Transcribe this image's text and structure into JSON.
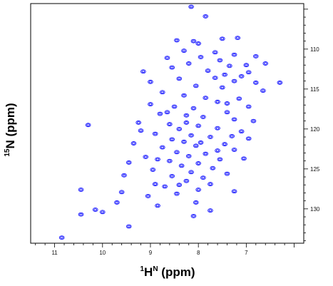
{
  "chart_data": {
    "type": "scatter",
    "title": "",
    "xlabel_main": "H",
    "xlabel_sup1": "1",
    "xlabel_sup2": "N",
    "xlabel_unit": " (ppm)",
    "ylabel_main": "N (ppm)",
    "ylabel_sup": "15",
    "x_axis": {
      "reversed": true,
      "xlim": [
        11.5,
        5.8
      ],
      "ticks": [
        11,
        10,
        9,
        8,
        7
      ]
    },
    "y_axis": {
      "reversed": true,
      "side": "right",
      "ylim": [
        104.3,
        134.3
      ],
      "ticks": [
        110,
        115,
        120,
        125,
        130
      ]
    },
    "grid": false,
    "legend": "none",
    "peak_color": "#1a1aff",
    "peaks": [
      [
        8.15,
        104.7
      ],
      [
        7.85,
        105.9
      ],
      [
        7.5,
        108.7
      ],
      [
        7.18,
        108.6
      ],
      [
        8.45,
        108.9
      ],
      [
        8.1,
        109.0
      ],
      [
        8.0,
        109.3
      ],
      [
        8.3,
        110.2
      ],
      [
        7.65,
        110.4
      ],
      [
        7.25,
        110.7
      ],
      [
        6.8,
        110.9
      ],
      [
        7.95,
        111.0
      ],
      [
        8.65,
        111.1
      ],
      [
        7.55,
        111.4
      ],
      [
        8.2,
        111.8
      ],
      [
        7.35,
        112.1
      ],
      [
        7.0,
        112.0
      ],
      [
        6.6,
        111.8
      ],
      [
        8.55,
        112.3
      ],
      [
        7.8,
        112.7
      ],
      [
        9.15,
        112.8
      ],
      [
        6.95,
        112.9
      ],
      [
        7.45,
        113.2
      ],
      [
        7.1,
        113.4
      ],
      [
        8.4,
        113.7
      ],
      [
        7.65,
        113.6
      ],
      [
        7.25,
        114.0
      ],
      [
        9.0,
        114.1
      ],
      [
        6.8,
        114.2
      ],
      [
        8.05,
        114.6
      ],
      [
        7.5,
        114.8
      ],
      [
        6.65,
        115.2
      ],
      [
        8.75,
        115.4
      ],
      [
        8.3,
        115.8
      ],
      [
        7.85,
        116.1
      ],
      [
        7.15,
        116.2
      ],
      [
        7.6,
        116.6
      ],
      [
        9.0,
        116.9
      ],
      [
        8.5,
        117.2
      ],
      [
        8.1,
        117.4
      ],
      [
        6.95,
        117.2
      ],
      [
        7.4,
        117.9
      ],
      [
        8.8,
        118.1
      ],
      [
        8.25,
        118.3
      ],
      [
        7.9,
        118.5
      ],
      [
        7.25,
        118.8
      ],
      [
        6.85,
        119.0
      ],
      [
        9.25,
        119.2
      ],
      [
        8.6,
        119.4
      ],
      [
        8.0,
        119.6
      ],
      [
        7.6,
        119.9
      ],
      [
        10.3,
        119.5
      ],
      [
        8.4,
        120.0
      ],
      [
        7.1,
        120.3
      ],
      [
        8.9,
        120.6
      ],
      [
        8.15,
        120.8
      ],
      [
        7.75,
        121.0
      ],
      [
        6.95,
        121.2
      ],
      [
        8.55,
        121.3
      ],
      [
        8.3,
        121.6
      ],
      [
        7.45,
        121.9
      ],
      [
        9.35,
        121.8
      ],
      [
        8.05,
        122.1
      ],
      [
        8.75,
        122.3
      ],
      [
        7.25,
        122.6
      ],
      [
        8.45,
        122.9
      ],
      [
        7.85,
        123.1
      ],
      [
        8.2,
        123.4
      ],
      [
        9.1,
        123.5
      ],
      [
        7.55,
        123.8
      ],
      [
        8.6,
        124.0
      ],
      [
        8.0,
        124.3
      ],
      [
        9.45,
        124.2
      ],
      [
        8.35,
        124.6
      ],
      [
        7.7,
        124.9
      ],
      [
        8.95,
        125.1
      ],
      [
        8.15,
        125.4
      ],
      [
        7.4,
        125.6
      ],
      [
        8.55,
        125.9
      ],
      [
        7.9,
        126.1
      ],
      [
        8.25,
        126.5
      ],
      [
        7.75,
        126.9
      ],
      [
        8.7,
        127.2
      ],
      [
        8.0,
        127.6
      ],
      [
        10.45,
        127.6
      ],
      [
        9.6,
        127.9
      ],
      [
        7.25,
        127.8
      ],
      [
        8.45,
        128.1
      ],
      [
        9.05,
        128.4
      ],
      [
        9.7,
        129.2
      ],
      [
        8.85,
        129.6
      ],
      [
        10.0,
        130.4
      ],
      [
        10.15,
        130.1
      ],
      [
        10.45,
        130.7
      ],
      [
        7.75,
        130.2
      ],
      [
        8.1,
        130.9
      ],
      [
        9.45,
        132.2
      ],
      [
        10.85,
        133.6
      ],
      [
        6.3,
        114.2
      ],
      [
        7.4,
        116.8
      ],
      [
        8.9,
        126.9
      ],
      [
        7.05,
        123.7
      ],
      [
        8.65,
        117.9
      ],
      [
        7.95,
        121.7
      ],
      [
        9.2,
        120.2
      ],
      [
        8.4,
        127.0
      ],
      [
        7.6,
        122.7
      ],
      [
        8.85,
        123.8
      ],
      [
        8.25,
        119.2
      ],
      [
        7.3,
        120.9
      ],
      [
        9.55,
        125.8
      ],
      [
        8.05,
        129.2
      ]
    ]
  }
}
